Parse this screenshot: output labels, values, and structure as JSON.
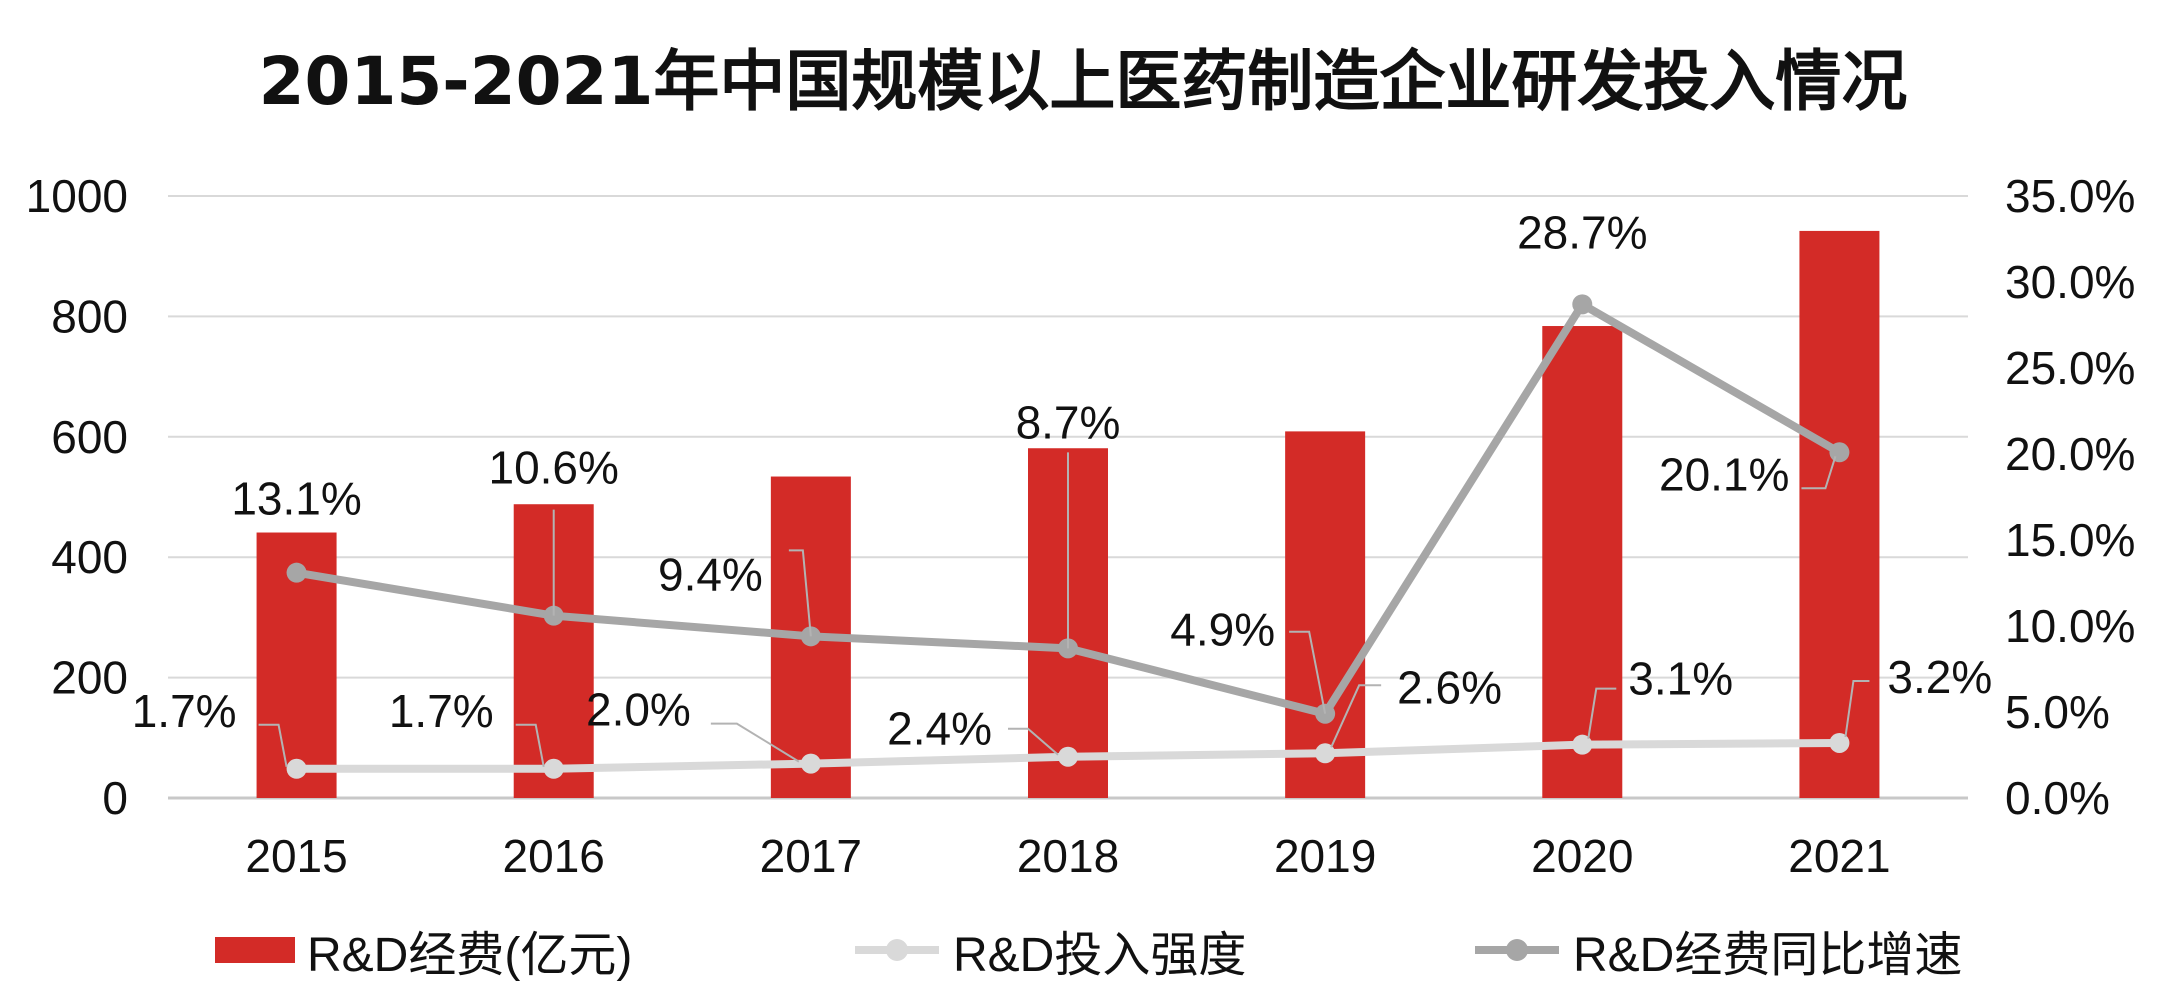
{
  "chart_data": {
    "type": "bar+line",
    "title": "2015-2021年中国规模以上医药制造企业研发投入情况",
    "categories": [
      "2015",
      "2016",
      "2017",
      "2018",
      "2019",
      "2020",
      "2021"
    ],
    "y_left": {
      "min": 0,
      "max": 1000,
      "ticks": [
        "0",
        "200",
        "400",
        "600",
        "800",
        "1000"
      ]
    },
    "y_right": {
      "min": 0,
      "max": 35,
      "ticks": [
        "0.0%",
        "5.0%",
        "10.0%",
        "15.0%",
        "20.0%",
        "25.0%",
        "30.0%",
        "35.0%"
      ]
    },
    "grid": true,
    "legend_position": "bottom",
    "series": [
      {
        "name": "R&D经费(亿元)",
        "type": "bar",
        "axis": "left",
        "color": "#d32b27",
        "values": [
          441,
          488,
          534,
          581,
          609,
          784,
          942
        ]
      },
      {
        "name": "R&D投入强度",
        "type": "line",
        "axis": "right",
        "color": "#d9d9d9",
        "values": [
          1.7,
          1.7,
          2.0,
          2.4,
          2.6,
          3.1,
          3.2
        ],
        "labels": [
          "1.7%",
          "1.7%",
          "2.0%",
          "2.4%",
          "2.6%",
          "3.1%",
          "3.2%"
        ]
      },
      {
        "name": "R&D经费同比增速",
        "type": "line",
        "axis": "right",
        "color": "#a6a6a6",
        "values": [
          13.1,
          10.6,
          9.4,
          8.7,
          4.9,
          28.7,
          20.1
        ],
        "labels": [
          "13.1%",
          "10.6%",
          "9.4%",
          "8.7%",
          "4.9%",
          "28.7%",
          "20.1%"
        ]
      }
    ]
  }
}
